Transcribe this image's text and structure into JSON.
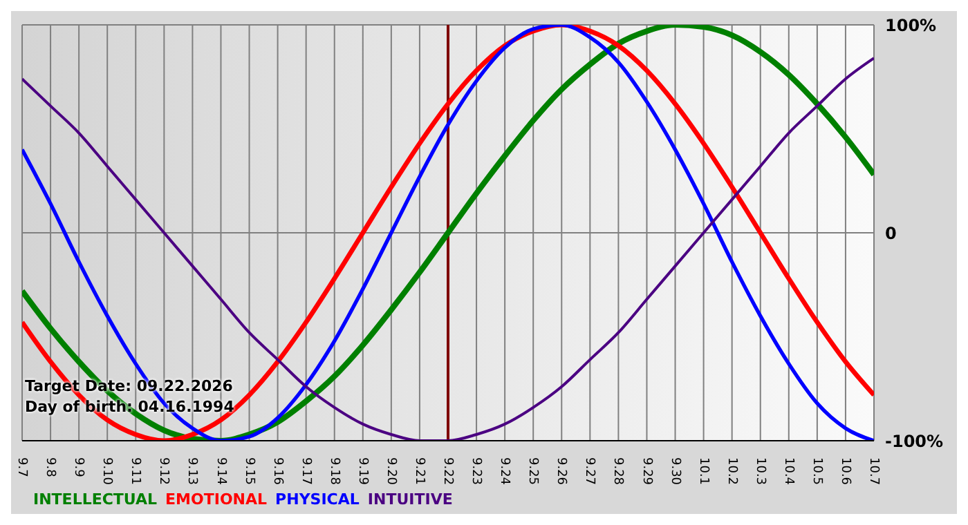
{
  "chart_data": {
    "type": "line",
    "categories": [
      "9.7",
      "9.8",
      "9.9",
      "9.10",
      "9.11",
      "9.12",
      "9.13",
      "9.14",
      "9.15",
      "9.16",
      "9.17",
      "9.18",
      "9.19",
      "9.20",
      "9.21",
      "9.22",
      "9.23",
      "9.24",
      "9.25",
      "9.26",
      "9.27",
      "9.28",
      "9.29",
      "9.30",
      "10.1",
      "10.2",
      "10.3",
      "10.4",
      "10.5",
      "10.6",
      "10.7"
    ],
    "series": [
      {
        "name": "INTELLECTUAL",
        "color": "#008000",
        "values": [
          -0.28,
          -0.46,
          -0.62,
          -0.76,
          -0.87,
          -0.95,
          -0.99,
          -1.0,
          -0.97,
          -0.91,
          -0.81,
          -0.69,
          -0.54,
          -0.37,
          -0.19,
          0,
          0.19,
          0.37,
          0.54,
          0.69,
          0.81,
          0.91,
          0.97,
          1.0,
          0.99,
          0.95,
          0.87,
          0.76,
          0.62,
          0.46,
          0.28
        ]
      },
      {
        "name": "EMOTIONAL",
        "color": "#ff0000",
        "values": [
          -0.43,
          -0.62,
          -0.78,
          -0.9,
          -0.97,
          -1.0,
          -0.97,
          -0.9,
          -0.78,
          -0.62,
          -0.43,
          -0.22,
          0,
          0.22,
          0.43,
          0.62,
          0.78,
          0.9,
          0.97,
          1.0,
          0.97,
          0.9,
          0.78,
          0.62,
          0.43,
          0.22,
          0,
          -0.22,
          -0.43,
          -0.62,
          -0.78
        ]
      },
      {
        "name": "PHYSICAL",
        "color": "#0000ff",
        "values": [
          0.4,
          0.14,
          -0.14,
          -0.4,
          -0.63,
          -0.82,
          -0.94,
          -1.0,
          -0.98,
          -0.89,
          -0.73,
          -0.52,
          -0.27,
          0,
          0.27,
          0.52,
          0.73,
          0.89,
          0.98,
          1.0,
          0.94,
          0.82,
          0.63,
          0.4,
          0.14,
          -0.14,
          -0.4,
          -0.63,
          -0.82,
          -0.94,
          -1.0
        ]
      },
      {
        "name": "INTUITIVE",
        "color": "#4b0082",
        "values": [
          0.74,
          0.61,
          0.48,
          0.32,
          0.16,
          0,
          -0.16,
          -0.32,
          -0.48,
          -0.61,
          -0.74,
          -0.84,
          -0.92,
          -0.97,
          -1.0,
          -1.0,
          -0.97,
          -0.92,
          -0.84,
          -0.74,
          -0.61,
          -0.48,
          -0.32,
          -0.16,
          0,
          0.16,
          0.32,
          0.48,
          0.61,
          0.74,
          0.84
        ]
      }
    ],
    "ylim": [
      -1,
      1
    ],
    "yticks": [
      {
        "value": -1,
        "label": "-100%"
      },
      {
        "value": 0,
        "label": "0"
      },
      {
        "value": 1,
        "label": "100%"
      }
    ],
    "grid": true,
    "legend": "bottom left",
    "marker": "none",
    "line_style": "solid",
    "ref_lines": [
      {
        "axis": "x",
        "value": "9.22",
        "color": "#800000"
      }
    ],
    "annotations": [
      "Target Date: 09.22.2026",
      "Day of birth: 04.16.1994"
    ]
  }
}
